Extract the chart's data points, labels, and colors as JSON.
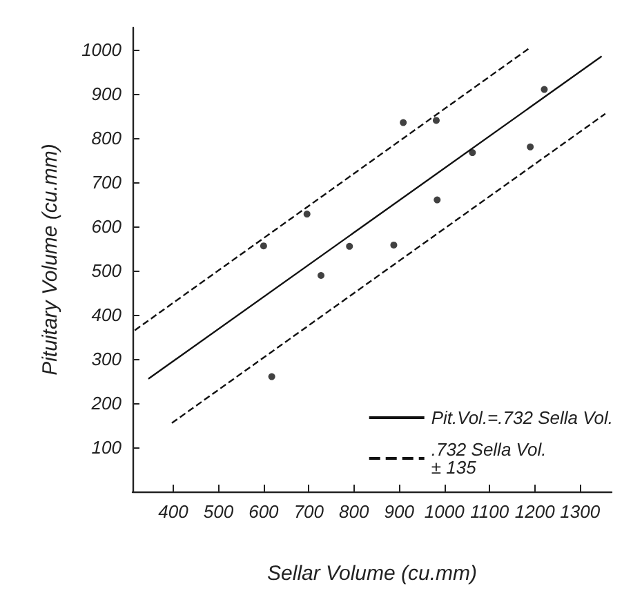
{
  "chart_data": {
    "type": "scatter",
    "xlabel": "Sellar Volume (cu.mm)",
    "ylabel": "Pituitary Volume (cu.mm)",
    "xlim": [
      310,
      1370
    ],
    "ylim": [
      0,
      1050
    ],
    "xticks": [
      400,
      500,
      600,
      700,
      800,
      900,
      1000,
      1100,
      1200,
      1300
    ],
    "yticks": [
      100,
      200,
      300,
      400,
      500,
      600,
      700,
      800,
      900,
      1000
    ],
    "grid": false,
    "legend": "bottom right",
    "marker": "circle",
    "series": [
      {
        "color": "#111111",
        "x": [
          600,
          618,
          696,
          727,
          790,
          888,
          909,
          982,
          984,
          1062,
          1190,
          1221
        ],
        "values": [
          556,
          260,
          628,
          489,
          555,
          558,
          835,
          840,
          660,
          767,
          780,
          910
        ]
      },
      {
        "type": "line",
        "name": "Pit.Vol.=.732 Sella Vol.",
        "color": "#111111",
        "line_style": "solid",
        "marker": "none",
        "x": [
          345,
          1348
        ],
        "values": [
          255,
          985
        ]
      },
      {
        "type": "line",
        "name": ".732 Sella Vol.\n± 135",
        "color": "#111111",
        "line_style": "dashed",
        "marker": "none",
        "x": [
          315,
          1190
        ],
        "values": [
          365,
          1005
        ]
      },
      {
        "type": "line",
        "color": "#111111",
        "line_style": "dashed",
        "marker": "none",
        "x": [
          397,
          1356
        ],
        "values": [
          155,
          855
        ]
      }
    ]
  }
}
